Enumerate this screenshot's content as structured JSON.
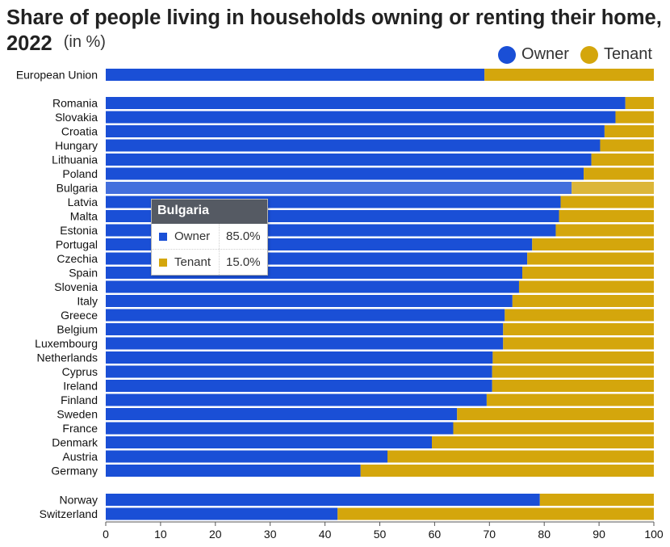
{
  "title": "Share of people living in households owning or renting their home, 2022",
  "unit": "(in %)",
  "legend": [
    {
      "name": "Owner",
      "color": "#1a4fd6"
    },
    {
      "name": "Tenant",
      "color": "#d4a60c"
    }
  ],
  "tooltip": {
    "title": "Bulgaria",
    "rows": [
      {
        "name": "Owner",
        "value": "85.0%",
        "color": "#1a4fd6"
      },
      {
        "name": "Tenant",
        "value": "15.0%",
        "color": "#d4a60c"
      }
    ]
  },
  "chart_data": {
    "type": "bar",
    "orientation": "horizontal",
    "stacked": true,
    "categories": [
      "European Union",
      "Romania",
      "Slovakia",
      "Croatia",
      "Hungary",
      "Lithuania",
      "Poland",
      "Bulgaria",
      "Latvia",
      "Malta",
      "Estonia",
      "Portugal",
      "Czechia",
      "Spain",
      "Slovenia",
      "Italy",
      "Greece",
      "Belgium",
      "Luxembourg",
      "Netherlands",
      "Cyprus",
      "Ireland",
      "Finland",
      "Sweden",
      "France",
      "Denmark",
      "Austria",
      "Germany",
      "Norway",
      "Switzerland"
    ],
    "groups": [
      [
        "European Union"
      ],
      [
        "Romania",
        "Slovakia",
        "Croatia",
        "Hungary",
        "Lithuania",
        "Poland",
        "Bulgaria",
        "Latvia",
        "Malta",
        "Estonia",
        "Portugal",
        "Czechia",
        "Spain",
        "Slovenia",
        "Italy",
        "Greece",
        "Belgium",
        "Luxembourg",
        "Netherlands",
        "Cyprus",
        "Ireland",
        "Finland",
        "Sweden",
        "France",
        "Denmark",
        "Austria",
        "Germany"
      ],
      [
        "Norway",
        "Switzerland"
      ]
    ],
    "series": [
      {
        "name": "Owner",
        "color": "#1a4fd6",
        "values": [
          69.1,
          94.8,
          93.0,
          91.0,
          90.2,
          88.6,
          87.2,
          85.0,
          83.0,
          82.7,
          82.1,
          77.8,
          76.9,
          76.0,
          75.4,
          74.2,
          72.8,
          72.5,
          72.5,
          70.6,
          70.5,
          70.5,
          69.5,
          64.1,
          63.4,
          59.5,
          51.4,
          46.5,
          79.2,
          42.3
        ]
      },
      {
        "name": "Tenant",
        "color": "#d4a60c",
        "values": [
          30.9,
          5.2,
          7.0,
          9.0,
          9.8,
          11.4,
          12.8,
          15.0,
          17.0,
          17.3,
          17.9,
          22.2,
          23.1,
          24.0,
          24.6,
          25.8,
          27.2,
          27.5,
          27.5,
          29.4,
          29.5,
          29.5,
          30.5,
          35.9,
          36.6,
          40.5,
          48.6,
          53.5,
          20.8,
          57.7
        ]
      }
    ],
    "xlim": [
      0,
      100
    ],
    "xticks": [
      0,
      10,
      20,
      30,
      40,
      50,
      60,
      70,
      80,
      90,
      100
    ],
    "highlighted": "Bulgaria",
    "grid": false,
    "legend_position": "top-right"
  }
}
